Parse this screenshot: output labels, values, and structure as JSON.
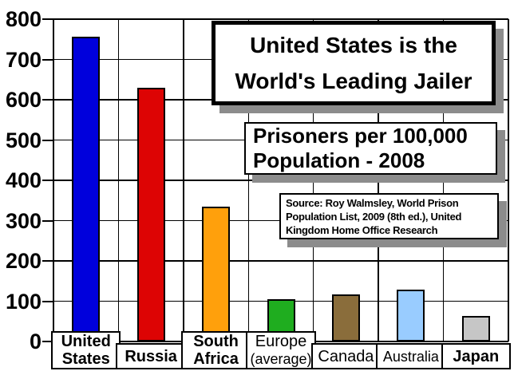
{
  "chart_data": {
    "type": "bar",
    "title": "United States is the World's Leading Jailer",
    "title_lines": [
      "United States is the",
      "World's Leading Jailer"
    ],
    "subtitle": "Prisoners per 100,000 Population - 2008",
    "subtitle_lines": [
      "Prisoners per 100,000",
      "Population - 2008"
    ],
    "source": "Source: Roy Walmsley, World Prison Population List, 2009 (8th ed.), United Kingdom Home Office Research",
    "source_lines": [
      "Source: Roy Walmsley, World Prison",
      "Population List, 2009 (8th ed.), United",
      "Kingdom Home Office Research"
    ],
    "categories": [
      "United States",
      "Russia",
      "South Africa",
      "Europe (average)",
      "Canada",
      "Australia",
      "Japan"
    ],
    "category_label_lines": [
      [
        "United",
        "States"
      ],
      [
        "Russia"
      ],
      [
        "South",
        "Africa"
      ],
      [
        "Europe",
        "(average)"
      ],
      [
        "Canada"
      ],
      [
        "Australia"
      ],
      [
        "Japan"
      ]
    ],
    "category_label_bold": [
      true,
      true,
      true,
      false,
      false,
      false,
      true
    ],
    "values": [
      756,
      629,
      335,
      105,
      116,
      129,
      63
    ],
    "bar_colors": [
      "#0000DC",
      "#DD0404",
      "#FFA00C",
      "#1FAD1F",
      "#8A6D3B",
      "#99CCFF",
      "#C6C6C6"
    ],
    "xlabel": "",
    "ylabel": "",
    "ylim": [
      0,
      800
    ],
    "yticks": [
      0,
      100,
      200,
      300,
      400,
      500,
      600,
      700,
      800
    ],
    "grid": true,
    "legend": false,
    "background": "#FFFFFF",
    "grid_color": "#000000",
    "shadow_color": "#8C8C8C"
  }
}
